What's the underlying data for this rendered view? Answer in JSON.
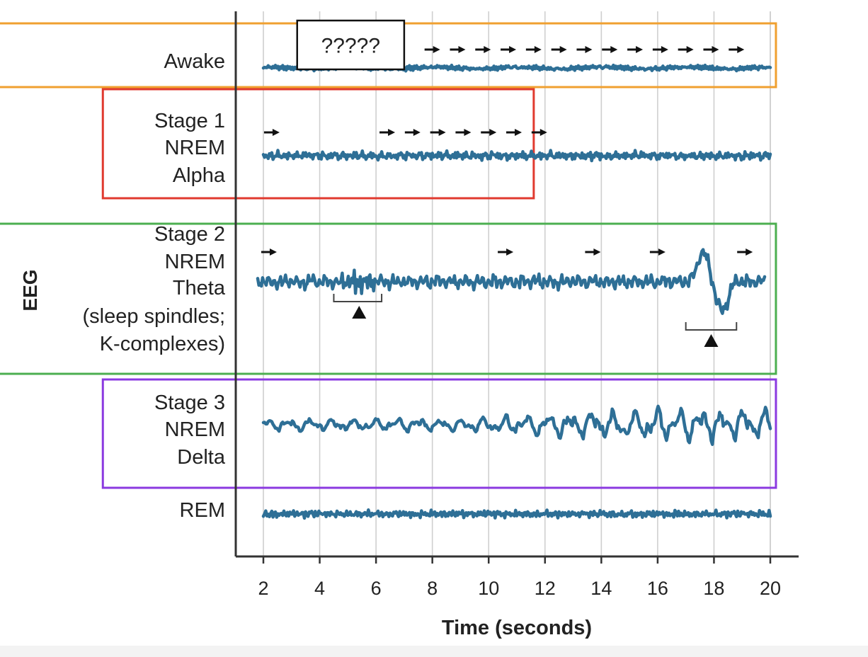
{
  "chart_data": {
    "type": "line",
    "ylabel": "EEG",
    "xlabel": "Time (seconds)",
    "xlim": [
      1,
      21
    ],
    "x_ticks": [
      2,
      4,
      6,
      8,
      10,
      12,
      14,
      16,
      18,
      20
    ],
    "grid": true,
    "trace_color": "#2e6f96",
    "series": [
      {
        "key": "awake",
        "label_lines": [
          "Awake"
        ],
        "box_color": "#f0a030",
        "box_x": [
          -7.9,
          20.2
        ],
        "amplitude": 0.35,
        "x_range": [
          2,
          20
        ],
        "waves": [
          [
            12,
            0.5
          ],
          [
            23,
            0.3
          ],
          [
            4,
            0.25
          ]
        ],
        "arrows": [
          8,
          8.9,
          9.8,
          10.7,
          11.6,
          12.5,
          13.4,
          14.3,
          15.2,
          16.1,
          17.0,
          17.9,
          18.8
        ],
        "callout": "?????",
        "callout_x": [
          3.2,
          7.0
        ]
      },
      {
        "key": "stage1",
        "label_lines": [
          "Stage 1",
          "NREM",
          "Alpha"
        ],
        "box_color": "#e03a2f",
        "box_x": [
          -3.7,
          11.6
        ],
        "amplitude": 0.55,
        "x_range": [
          2,
          20
        ],
        "waves": [
          [
            10,
            0.55
          ],
          [
            19,
            0.3
          ],
          [
            3,
            0.25
          ]
        ],
        "arrows": [
          2.3,
          6.4,
          7.3,
          8.2,
          9.1,
          10.0,
          10.9,
          11.8
        ]
      },
      {
        "key": "stage2",
        "label_lines": [
          "Stage 2",
          "NREM",
          "Theta",
          "(sleep spindles;",
          "K-complexes)"
        ],
        "box_color": "#4caf50",
        "box_x": [
          -7.6,
          20.2
        ],
        "amplitude": 0.9,
        "x_range": [
          1.8,
          19.8
        ],
        "waves": [
          [
            5,
            0.5
          ],
          [
            11,
            0.3
          ],
          [
            2,
            0.3
          ]
        ],
        "arrows": [
          2.2,
          10.6,
          13.7,
          16.0,
          19.1
        ],
        "spindle": [
          4.6,
          6.1
        ],
        "k_complex": [
          17.1,
          18.8
        ],
        "spindle_bracket": [
          4.5,
          6.2
        ],
        "k_complex_bracket": [
          17.0,
          18.8
        ],
        "markers": [
          5.4,
          17.9
        ]
      },
      {
        "key": "stage3",
        "label_lines": [
          "Stage 3",
          "NREM",
          "Delta"
        ],
        "box_color": "#8b3ae0",
        "box_x": [
          -3.7,
          20.2
        ],
        "amplitude": 1.7,
        "x_range": [
          2,
          20
        ],
        "waves": [
          [
            1.3,
            0.6
          ],
          [
            2.4,
            0.35
          ],
          [
            5,
            0.15
          ]
        ],
        "growth": true
      },
      {
        "key": "rem",
        "label_lines": [
          "REM"
        ],
        "amplitude": 0.5,
        "x_range": [
          2,
          20
        ],
        "waves": [
          [
            9,
            0.5
          ],
          [
            17,
            0.3
          ],
          [
            3,
            0.2
          ]
        ]
      }
    ]
  }
}
